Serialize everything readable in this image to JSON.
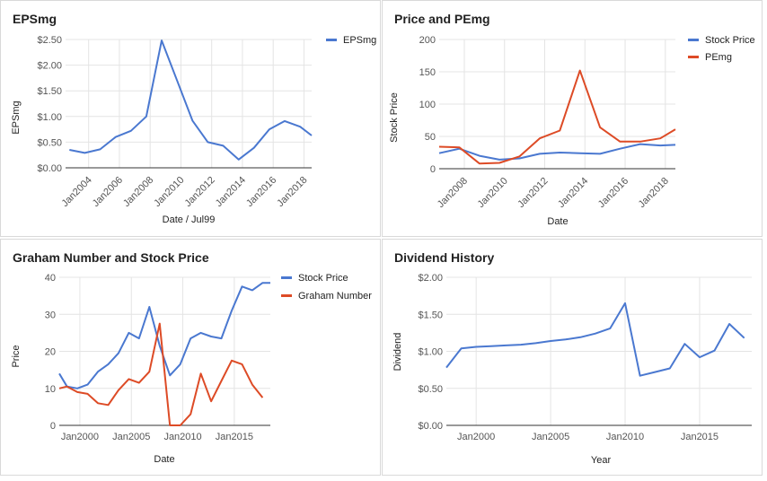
{
  "colors": {
    "blue": "#4a78d0",
    "red": "#dd4b26",
    "grid": "#e4e4e4",
    "axis": "#333333",
    "text": "#555555"
  },
  "chart_data": [
    {
      "type": "line",
      "title": "EPSmg",
      "xlabel": "Date / Jul99",
      "ylabel": "EPSmg",
      "x_tick_labels": [
        "Jan2004",
        "Jan2006",
        "Jan2008",
        "Jan2010",
        "Jan2012",
        "Jan2014",
        "Jan2016",
        "Jan2018"
      ],
      "y_tick_labels": [
        "$0.00",
        "$0.50",
        "$1.00",
        "$1.50",
        "$2.00",
        "$2.50"
      ],
      "ylim": [
        0,
        2.5
      ],
      "xlim": [
        2002.5,
        2018.5
      ],
      "legend_position": "right",
      "grid": true,
      "series": [
        {
          "name": "EPSmg",
          "color": "#4a78d0",
          "x": [
            2002.75,
            2003.75,
            2004.75,
            2005.75,
            2006.75,
            2007.75,
            2008.75,
            2009.75,
            2010.75,
            2011.75,
            2012.75,
            2013.75,
            2014.75,
            2015.75,
            2016.75,
            2017.75,
            2018.5
          ],
          "y": [
            0.35,
            0.29,
            0.36,
            0.6,
            0.72,
            1.0,
            2.48,
            1.7,
            0.92,
            0.5,
            0.43,
            0.16,
            0.39,
            0.75,
            0.91,
            0.8,
            0.63
          ]
        }
      ]
    },
    {
      "type": "line",
      "title": "Price and PEmg",
      "xlabel": "Date",
      "ylabel": "Stock Price",
      "x_tick_labels": [
        "Jan2008",
        "Jan2010",
        "Jan2012",
        "Jan2014",
        "Jan2016",
        "Jan2018"
      ],
      "y_tick_labels": [
        "0",
        "50",
        "100",
        "150",
        "200"
      ],
      "ylim": [
        0,
        200
      ],
      "xlim": [
        2006.75,
        2018.5
      ],
      "legend_position": "right",
      "grid": true,
      "series": [
        {
          "name": "Stock Price",
          "color": "#4a78d0",
          "x": [
            2006.75,
            2007.75,
            2008.75,
            2009.75,
            2010.75,
            2011.75,
            2012.75,
            2013.75,
            2014.75,
            2015.75,
            2016.75,
            2017.75,
            2018.5
          ],
          "y": [
            24,
            31,
            20,
            14,
            16,
            23,
            25,
            24,
            23,
            31,
            38,
            36,
            37
          ]
        },
        {
          "name": "PEmg",
          "color": "#dd4b26",
          "x": [
            2006.75,
            2007.75,
            2008.75,
            2009.75,
            2010.75,
            2011.75,
            2012.75,
            2013.75,
            2014.75,
            2015.75,
            2016.75,
            2017.75,
            2018.5
          ],
          "y": [
            34,
            33,
            8,
            9,
            19,
            47,
            59,
            152,
            64,
            42,
            42,
            47,
            61
          ]
        }
      ]
    },
    {
      "type": "line",
      "title": "Graham Number and Stock Price",
      "xlabel": "Date",
      "ylabel": "Price",
      "x_tick_labels": [
        "Jan2000",
        "Jan2005",
        "Jan2010",
        "Jan2015"
      ],
      "y_tick_labels": [
        "0",
        "10",
        "20",
        "30",
        "40"
      ],
      "ylim": [
        0,
        40
      ],
      "xlim": [
        1998,
        2018.5
      ],
      "legend_position": "right",
      "grid": true,
      "series": [
        {
          "name": "Stock Price",
          "color": "#4a78d0",
          "x": [
            1998,
            1998.75,
            1999.75,
            2000.75,
            2001.75,
            2002.75,
            2003.75,
            2004.75,
            2005.75,
            2006.75,
            2007.75,
            2008.75,
            2009.75,
            2010.75,
            2011.75,
            2012.75,
            2013.75,
            2014.75,
            2015.75,
            2016.75,
            2017.75,
            2018.5
          ],
          "y": [
            14,
            10.5,
            10,
            11,
            14.5,
            16.5,
            19.5,
            25,
            23.5,
            32,
            21.5,
            13.5,
            16.5,
            23.5,
            25,
            24,
            23.5,
            31,
            37.5,
            36.5,
            38.5,
            38.5
          ]
        },
        {
          "name": "Graham Number",
          "color": "#dd4b26",
          "x": [
            1998,
            1998.75,
            1999.75,
            2000.75,
            2001.75,
            2002.75,
            2003.75,
            2004.75,
            2005.75,
            2006.75,
            2007.75,
            2008.75,
            2009.75,
            2010.75,
            2011.75,
            2012.75,
            2013.75,
            2014.75,
            2015.75,
            2016.75,
            2017.75
          ],
          "y": [
            10,
            10.5,
            9,
            8.5,
            6,
            5.5,
            9.5,
            12.5,
            11.5,
            14.5,
            27.5,
            0,
            0,
            3,
            14,
            6.5,
            12,
            17.5,
            16.5,
            11,
            7.5
          ]
        }
      ]
    },
    {
      "type": "line",
      "title": "Dividend History",
      "xlabel": "Year",
      "ylabel": "Dividend",
      "x_tick_labels": [
        "Jan2000",
        "Jan2005",
        "Jan2010",
        "Jan2015"
      ],
      "y_tick_labels": [
        "$0.00",
        "$0.50",
        "$1.00",
        "$1.50",
        "$2.00"
      ],
      "ylim": [
        0,
        2
      ],
      "xlim": [
        1998,
        2018.5
      ],
      "grid": true,
      "series": [
        {
          "name": "",
          "color": "#4a78d0",
          "x": [
            1998,
            1999,
            2000,
            2001,
            2002,
            2003,
            2004,
            2005,
            2006,
            2007,
            2008,
            2009,
            2010,
            2011,
            2012,
            2013,
            2014,
            2015,
            2016,
            2017,
            2018
          ],
          "y": [
            0.78,
            1.04,
            1.06,
            1.07,
            1.08,
            1.09,
            1.11,
            1.14,
            1.16,
            1.19,
            1.24,
            1.31,
            1.65,
            0.67,
            0.72,
            0.77,
            1.1,
            0.92,
            1.01,
            1.37,
            1.18
          ]
        }
      ]
    }
  ]
}
